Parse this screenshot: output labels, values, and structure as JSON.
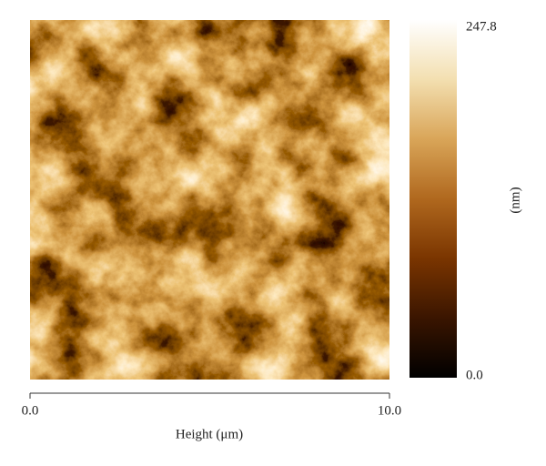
{
  "chart_data": {
    "type": "image",
    "xlabel": "Height (μm)",
    "xlim": [
      0,
      10
    ],
    "xticks": [
      {
        "value": 0,
        "label": "0.0"
      },
      {
        "value": 10,
        "label": "10.0"
      }
    ],
    "colorbar_label": "(nm)",
    "clim": [
      0,
      247.8
    ],
    "cticks": [
      {
        "value": 0,
        "label": "0.0"
      },
      {
        "value": 247.8,
        "label": "247.8"
      }
    ],
    "colormap": [
      "#000000",
      "#3a1500",
      "#7a3500",
      "#b0681e",
      "#d9a558",
      "#f3dfb0",
      "#ffffff"
    ]
  }
}
